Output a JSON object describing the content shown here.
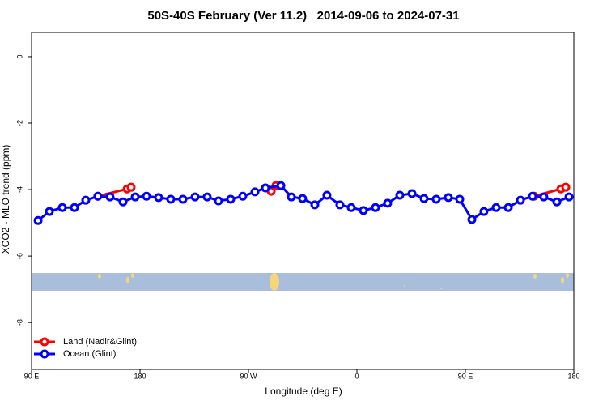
{
  "chart_data": {
    "type": "line",
    "title": "50S-40S February (Ver 11.2)   2014-09-06 to 2024-07-31",
    "x_label": "Longitude (deg E)",
    "y_label": "XCO2 - MLO trend (ppm)",
    "xlim": [
      90,
      540
    ],
    "ylim": [
      -9.41,
      0.73
    ],
    "xticks": [
      {
        "value": 90,
        "label": "90 E"
      },
      180,
      {
        "value": 270,
        "label": "90 W"
      },
      {
        "value": 360,
        "label": "0"
      },
      {
        "value": 450,
        "label": "90 E"
      },
      {
        "value": 540,
        "label": "180"
      }
    ],
    "yticks": [
      0,
      -2,
      -4,
      -6,
      -8
    ],
    "legend": "bottom-left",
    "series": [
      {
        "name": "Land (Nadir&Glint)",
        "color": "#ff0000",
        "x": [
          145,
          169.3,
          172.6,
          null,
          288.8,
          292.8,
          null,
          507,
          529.3,
          533.3
        ],
        "values": [
          -4.2,
          -3.98,
          -3.93,
          null,
          -4.05,
          -3.88,
          null,
          -4.2,
          -3.98,
          -3.93
        ]
      },
      {
        "name": "Ocean (Glint)",
        "color": "#0000ff",
        "x": [
          95.4,
          104.8,
          115.5,
          125.6,
          135,
          145,
          155.1,
          165.9,
          176,
          185.4,
          195.4,
          205.5,
          215.6,
          225.7,
          235.7,
          245.1,
          255.2,
          265.3,
          275.4,
          284.1,
          296.9,
          305.6,
          314.9,
          325.1,
          335.1,
          345.9,
          355.3,
          365.4,
          375.4,
          385.5,
          395.6,
          405.7,
          415.7,
          425.8,
          435.9,
          445.3,
          455.4,
          465.4,
          475.5,
          485.6,
          495.7,
          505.7,
          515.1,
          525.9,
          536
        ],
        "values": [
          -4.93,
          -4.66,
          -4.54,
          -4.54,
          -4.32,
          -4.2,
          -4.22,
          -4.37,
          -4.22,
          -4.2,
          -4.24,
          -4.29,
          -4.29,
          -4.22,
          -4.22,
          -4.34,
          -4.29,
          -4.2,
          -4.07,
          -3.95,
          -3.88,
          -4.22,
          -4.27,
          -4.46,
          -4.17,
          -4.46,
          -4.54,
          -4.63,
          -4.54,
          -4.41,
          -4.17,
          -4.12,
          -4.27,
          -4.29,
          -4.24,
          -4.29,
          -4.9,
          -4.66,
          -4.54,
          -4.54,
          -4.32,
          -4.2,
          -4.22,
          -4.37,
          -4.22
        ]
      }
    ]
  }
}
